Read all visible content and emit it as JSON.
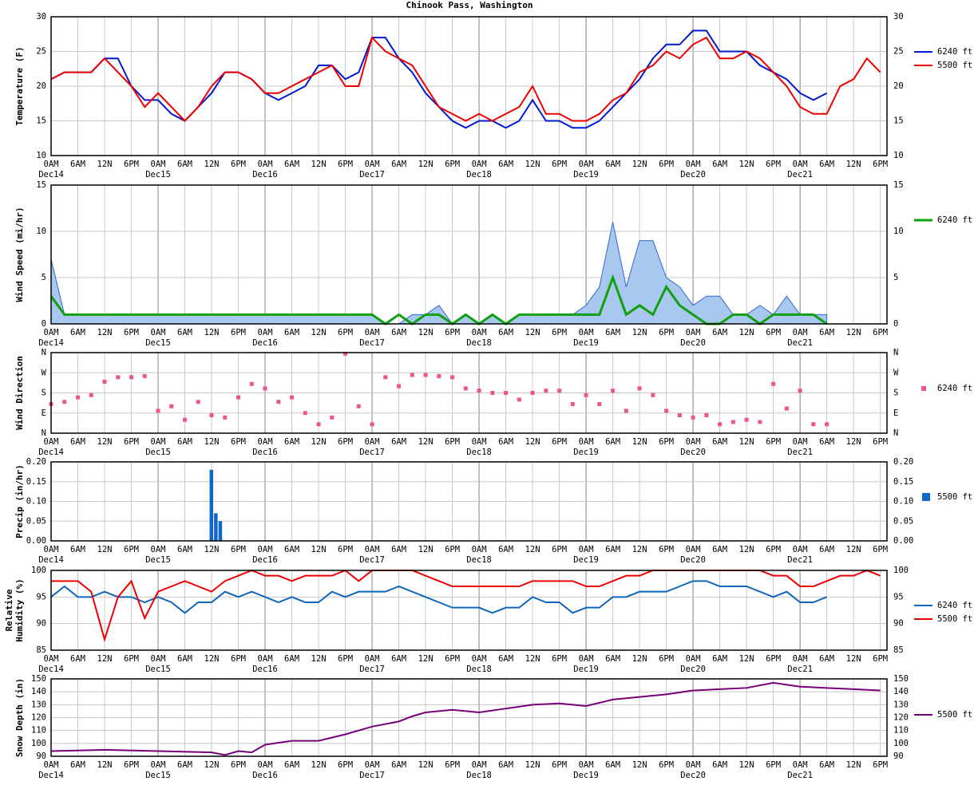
{
  "title": "Chinook Pass, Washington",
  "time_axis": {
    "xlim": [
      0,
      187.5
    ],
    "xticks": [
      {
        "value": 0,
        "label": "0AM"
      },
      {
        "value": 6,
        "label": "6AM"
      },
      {
        "value": 12,
        "label": "12N"
      },
      {
        "value": 18,
        "label": "6PM"
      },
      {
        "value": 24,
        "label": "0AM"
      },
      {
        "value": 30,
        "label": "6AM"
      },
      {
        "value": 36,
        "label": "12N"
      },
      {
        "value": 42,
        "label": "6PM"
      },
      {
        "value": 48,
        "label": "0AM"
      },
      {
        "value": 54,
        "label": "6AM"
      },
      {
        "value": 60,
        "label": "12N"
      },
      {
        "value": 66,
        "label": "6PM"
      },
      {
        "value": 72,
        "label": "0AM"
      },
      {
        "value": 78,
        "label": "6AM"
      },
      {
        "value": 84,
        "label": "12N"
      },
      {
        "value": 90,
        "label": "6PM"
      },
      {
        "value": 96,
        "label": "0AM"
      },
      {
        "value": 102,
        "label": "6AM"
      },
      {
        "value": 108,
        "label": "12N"
      },
      {
        "value": 114,
        "label": "6PM"
      },
      {
        "value": 120,
        "label": "0AM"
      },
      {
        "value": 126,
        "label": "6AM"
      },
      {
        "value": 132,
        "label": "12N"
      },
      {
        "value": 138,
        "label": "6PM"
      },
      {
        "value": 144,
        "label": "0AM"
      },
      {
        "value": 150,
        "label": "6AM"
      },
      {
        "value": 156,
        "label": "12N"
      },
      {
        "value": 162,
        "label": "6PM"
      },
      {
        "value": 168,
        "label": "0AM"
      },
      {
        "value": 174,
        "label": "6AM"
      },
      {
        "value": 180,
        "label": "12N"
      },
      {
        "value": 186,
        "label": "6PM"
      }
    ],
    "date_labels": [
      {
        "value": 0,
        "label": "Dec14"
      },
      {
        "value": 24,
        "label": "Dec15"
      },
      {
        "value": 48,
        "label": "Dec16"
      },
      {
        "value": 72,
        "label": "Dec17"
      },
      {
        "value": 96,
        "label": "Dec18"
      },
      {
        "value": 120,
        "label": "Dec19"
      },
      {
        "value": 144,
        "label": "Dec20"
      },
      {
        "value": 168,
        "label": "Dec21"
      }
    ]
  },
  "chart_data": [
    {
      "type": "line",
      "ylabel": "Temperature (F)",
      "ylim": [
        10,
        30
      ],
      "yticks": [
        10,
        15,
        20,
        25,
        30
      ],
      "grid": true,
      "x": [
        0,
        3,
        6,
        9,
        12,
        15,
        18,
        21,
        24,
        27,
        30,
        33,
        36,
        39,
        42,
        45,
        48,
        51,
        54,
        57,
        60,
        63,
        66,
        69,
        72,
        75,
        78,
        81,
        84,
        87,
        90,
        93,
        96,
        99,
        102,
        105,
        108,
        111,
        114,
        117,
        120,
        123,
        126,
        129,
        132,
        135,
        138,
        141,
        144,
        147,
        150,
        153,
        156,
        159,
        162,
        165,
        168,
        171,
        174,
        177,
        180,
        183,
        186
      ],
      "series": [
        {
          "name": "6240 ft",
          "color": "#0018d0",
          "values": [
            21,
            22,
            22,
            22,
            24,
            24,
            20,
            18,
            18,
            16,
            15,
            17,
            19,
            22,
            22,
            21,
            19,
            18,
            19,
            20,
            23,
            23,
            21,
            22,
            27,
            27,
            24,
            22,
            19,
            17,
            15,
            14,
            15,
            15,
            14,
            15,
            18,
            15,
            15,
            14,
            14,
            15,
            17,
            19,
            21,
            24,
            26,
            26,
            28,
            28,
            25,
            25,
            25,
            23,
            22,
            21,
            19,
            18,
            19,
            null,
            null,
            null,
            null
          ]
        },
        {
          "name": "5500 ft",
          "color": "#ee0000",
          "values": [
            21,
            22,
            22,
            22,
            24,
            22,
            20,
            17,
            19,
            17,
            15,
            17,
            20,
            22,
            22,
            21,
            19,
            19,
            20,
            21,
            22,
            23,
            20,
            20,
            27,
            25,
            24,
            23,
            20,
            17,
            16,
            15,
            16,
            15,
            16,
            17,
            20,
            16,
            16,
            15,
            15,
            16,
            18,
            19,
            22,
            23,
            25,
            24,
            26,
            27,
            24,
            24,
            25,
            24,
            22,
            20,
            17,
            16,
            16,
            20,
            21,
            24,
            22
          ]
        }
      ]
    },
    {
      "type": "line",
      "ylabel": "Wind Speed (mi/hr)",
      "ylim": [
        0,
        15
      ],
      "yticks": [
        0,
        5,
        10,
        15
      ],
      "grid": true,
      "x": [
        0,
        3,
        6,
        9,
        12,
        15,
        18,
        21,
        24,
        27,
        30,
        33,
        36,
        39,
        42,
        45,
        48,
        51,
        54,
        57,
        60,
        63,
        66,
        69,
        72,
        75,
        78,
        81,
        84,
        87,
        90,
        93,
        96,
        99,
        102,
        105,
        108,
        111,
        114,
        117,
        120,
        123,
        126,
        129,
        132,
        135,
        138,
        141,
        144,
        147,
        150,
        153,
        156,
        159,
        162,
        165,
        168,
        171,
        174,
        177,
        180,
        183,
        186
      ],
      "area": {
        "color": "#a8c8f0",
        "values": [
          7,
          1,
          1,
          1,
          1,
          1,
          1,
          1,
          1,
          1,
          1,
          1,
          1,
          1,
          1,
          1,
          1,
          1,
          1,
          1,
          1,
          1,
          1,
          1,
          1,
          0,
          0,
          1,
          1,
          2,
          0,
          1,
          0,
          1,
          0,
          1,
          1,
          1,
          1,
          1,
          2,
          4,
          11,
          4,
          9,
          9,
          5,
          4,
          2,
          3,
          3,
          1,
          1,
          2,
          1,
          3,
          1,
          1,
          1,
          null,
          null,
          null,
          null
        ]
      },
      "series": [
        {
          "name": "6240 ft",
          "color": "#10a010",
          "values": [
            3,
            1,
            1,
            1,
            1,
            1,
            1,
            1,
            1,
            1,
            1,
            1,
            1,
            1,
            1,
            1,
            1,
            1,
            1,
            1,
            1,
            1,
            1,
            1,
            1,
            0,
            1,
            0,
            1,
            1,
            0,
            1,
            0,
            1,
            0,
            1,
            1,
            1,
            1,
            1,
            1,
            1,
            5,
            1,
            2,
            1,
            4,
            2,
            1,
            0,
            0,
            1,
            1,
            0,
            1,
            1,
            1,
            1,
            0,
            null,
            null,
            null,
            null
          ]
        }
      ]
    },
    {
      "type": "scatter",
      "ylabel": "Wind Direction",
      "ylim": [
        0,
        360
      ],
      "yticks": [
        {
          "value": 0,
          "label": "N"
        },
        {
          "value": 90,
          "label": "E"
        },
        {
          "value": 180,
          "label": "S"
        },
        {
          "value": 270,
          "label": "W"
        },
        {
          "value": 360,
          "label": "N"
        }
      ],
      "grid": true,
      "x": [
        0,
        3,
        6,
        9,
        12,
        15,
        18,
        21,
        24,
        27,
        30,
        33,
        36,
        39,
        42,
        45,
        48,
        51,
        54,
        57,
        60,
        63,
        66,
        69,
        72,
        75,
        78,
        81,
        84,
        87,
        90,
        93,
        96,
        99,
        102,
        105,
        108,
        111,
        114,
        117,
        120,
        123,
        126,
        129,
        132,
        135,
        138,
        141,
        144,
        147,
        150,
        153,
        156,
        159,
        162,
        165,
        168,
        171,
        174,
        177,
        180,
        183,
        186
      ],
      "series": [
        {
          "name": "6240 ft",
          "color": "#ee5588",
          "values": [
            130,
            140,
            160,
            170,
            230,
            250,
            250,
            255,
            100,
            120,
            60,
            140,
            80,
            70,
            160,
            220,
            200,
            140,
            160,
            90,
            40,
            70,
            355,
            120,
            40,
            250,
            210,
            260,
            260,
            255,
            250,
            200,
            190,
            180,
            180,
            150,
            180,
            190,
            190,
            130,
            170,
            130,
            190,
            100,
            200,
            170,
            100,
            80,
            70,
            80,
            40,
            50,
            60,
            50,
            220,
            110,
            190,
            40,
            40,
            null,
            null,
            null,
            null
          ]
        }
      ]
    },
    {
      "type": "bar",
      "ylabel": "Precip (in/hr)",
      "ylim": [
        0,
        0.2
      ],
      "yticks": [
        {
          "value": 0,
          "label": "0.00"
        },
        {
          "value": 0.05,
          "label": "0.05"
        },
        {
          "value": 0.1,
          "label": "0.10"
        },
        {
          "value": 0.15,
          "label": "0.15"
        },
        {
          "value": 0.2,
          "label": "0.20"
        }
      ],
      "grid": true,
      "x": [
        36,
        37,
        38
      ],
      "series": [
        {
          "name": "5500 ft",
          "color": "#1166cc",
          "values": [
            0.18,
            0.07,
            0.05
          ]
        }
      ]
    },
    {
      "type": "line",
      "ylabel": [
        "Relative",
        "Humidity (%)"
      ],
      "ylim": [
        85,
        100
      ],
      "yticks": [
        85,
        90,
        95,
        100
      ],
      "grid": true,
      "x": [
        0,
        3,
        6,
        9,
        12,
        15,
        18,
        21,
        24,
        27,
        30,
        33,
        36,
        39,
        42,
        45,
        48,
        51,
        54,
        57,
        60,
        63,
        66,
        69,
        72,
        75,
        78,
        81,
        84,
        87,
        90,
        93,
        96,
        99,
        102,
        105,
        108,
        111,
        114,
        117,
        120,
        123,
        126,
        129,
        132,
        135,
        138,
        141,
        144,
        147,
        150,
        153,
        156,
        159,
        162,
        165,
        168,
        171,
        174,
        177,
        180,
        183,
        186
      ],
      "series": [
        {
          "name": "6240 ft",
          "color": "#1166bb",
          "values": [
            95,
            97,
            95,
            95,
            96,
            95,
            95,
            94,
            95,
            94,
            92,
            94,
            94,
            96,
            95,
            96,
            95,
            94,
            95,
            94,
            94,
            96,
            95,
            96,
            96,
            96,
            97,
            96,
            95,
            94,
            93,
            93,
            93,
            92,
            93,
            93,
            95,
            94,
            94,
            92,
            93,
            93,
            95,
            95,
            96,
            96,
            96,
            97,
            98,
            98,
            97,
            97,
            97,
            96,
            95,
            96,
            94,
            94,
            95,
            null,
            null,
            null,
            null
          ]
        },
        {
          "name": "5500 ft",
          "color": "#ee0000",
          "values": [
            98,
            98,
            98,
            96,
            87,
            95,
            98,
            91,
            96,
            97,
            98,
            97,
            96,
            98,
            99,
            100,
            99,
            99,
            98,
            99,
            99,
            99,
            100,
            98,
            100,
            100,
            100,
            100,
            99,
            98,
            97,
            97,
            97,
            97,
            97,
            97,
            98,
            98,
            98,
            98,
            97,
            97,
            98,
            99,
            99,
            100,
            100,
            100,
            100,
            100,
            100,
            100,
            100,
            100,
            99,
            99,
            97,
            97,
            98,
            99,
            99,
            100,
            99
          ]
        }
      ]
    },
    {
      "type": "line",
      "ylabel": "Snow Depth (in)",
      "ylim": [
        90,
        150
      ],
      "yticks": [
        90,
        100,
        110,
        120,
        130,
        140,
        150
      ],
      "grid": true,
      "x": [
        0,
        12,
        24,
        36,
        39,
        42,
        45,
        48,
        54,
        60,
        66,
        72,
        78,
        81,
        84,
        90,
        96,
        102,
        108,
        114,
        120,
        126,
        132,
        138,
        144,
        150,
        156,
        162,
        168,
        174,
        180,
        186
      ],
      "series": [
        {
          "name": "5500 ft",
          "color": "#770077",
          "values": [
            94,
            95,
            94,
            93,
            91,
            94,
            93,
            99,
            102,
            102,
            107,
            113,
            117,
            121,
            124,
            126,
            124,
            127,
            130,
            131,
            129,
            134,
            136,
            138,
            141,
            142,
            143,
            147,
            144,
            143,
            142,
            141
          ]
        }
      ]
    }
  ]
}
